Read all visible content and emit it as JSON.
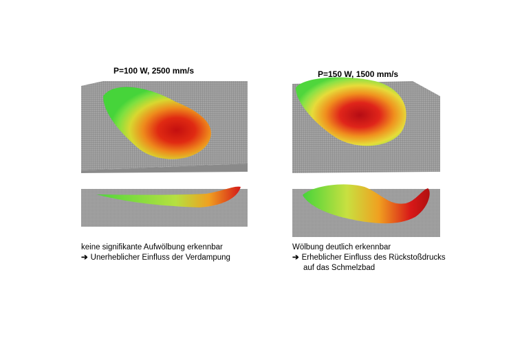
{
  "panels": [
    {
      "title": "P=100 W, 2500 mm/s",
      "caption": {
        "line1": "keine signifikante Aufwölbung erkennbar",
        "arrow": "➔",
        "line2": "Unerheblicher Einfluss der Verdampung"
      }
    },
    {
      "title": "P=150 W, 1500 mm/s",
      "caption": {
        "line1": "Wölbung deutlich erkennbar",
        "arrow": "➔",
        "line2": "Erheblicher Einfluss des Rückstoßdrucks",
        "line3": "auf das Schmelzbad"
      }
    }
  ],
  "colors": {
    "hot": "#d40f0f",
    "mid": "#f0a020",
    "cool": "#7ee040",
    "edge": "#3fd13a",
    "powder": "#9c9c9c"
  }
}
